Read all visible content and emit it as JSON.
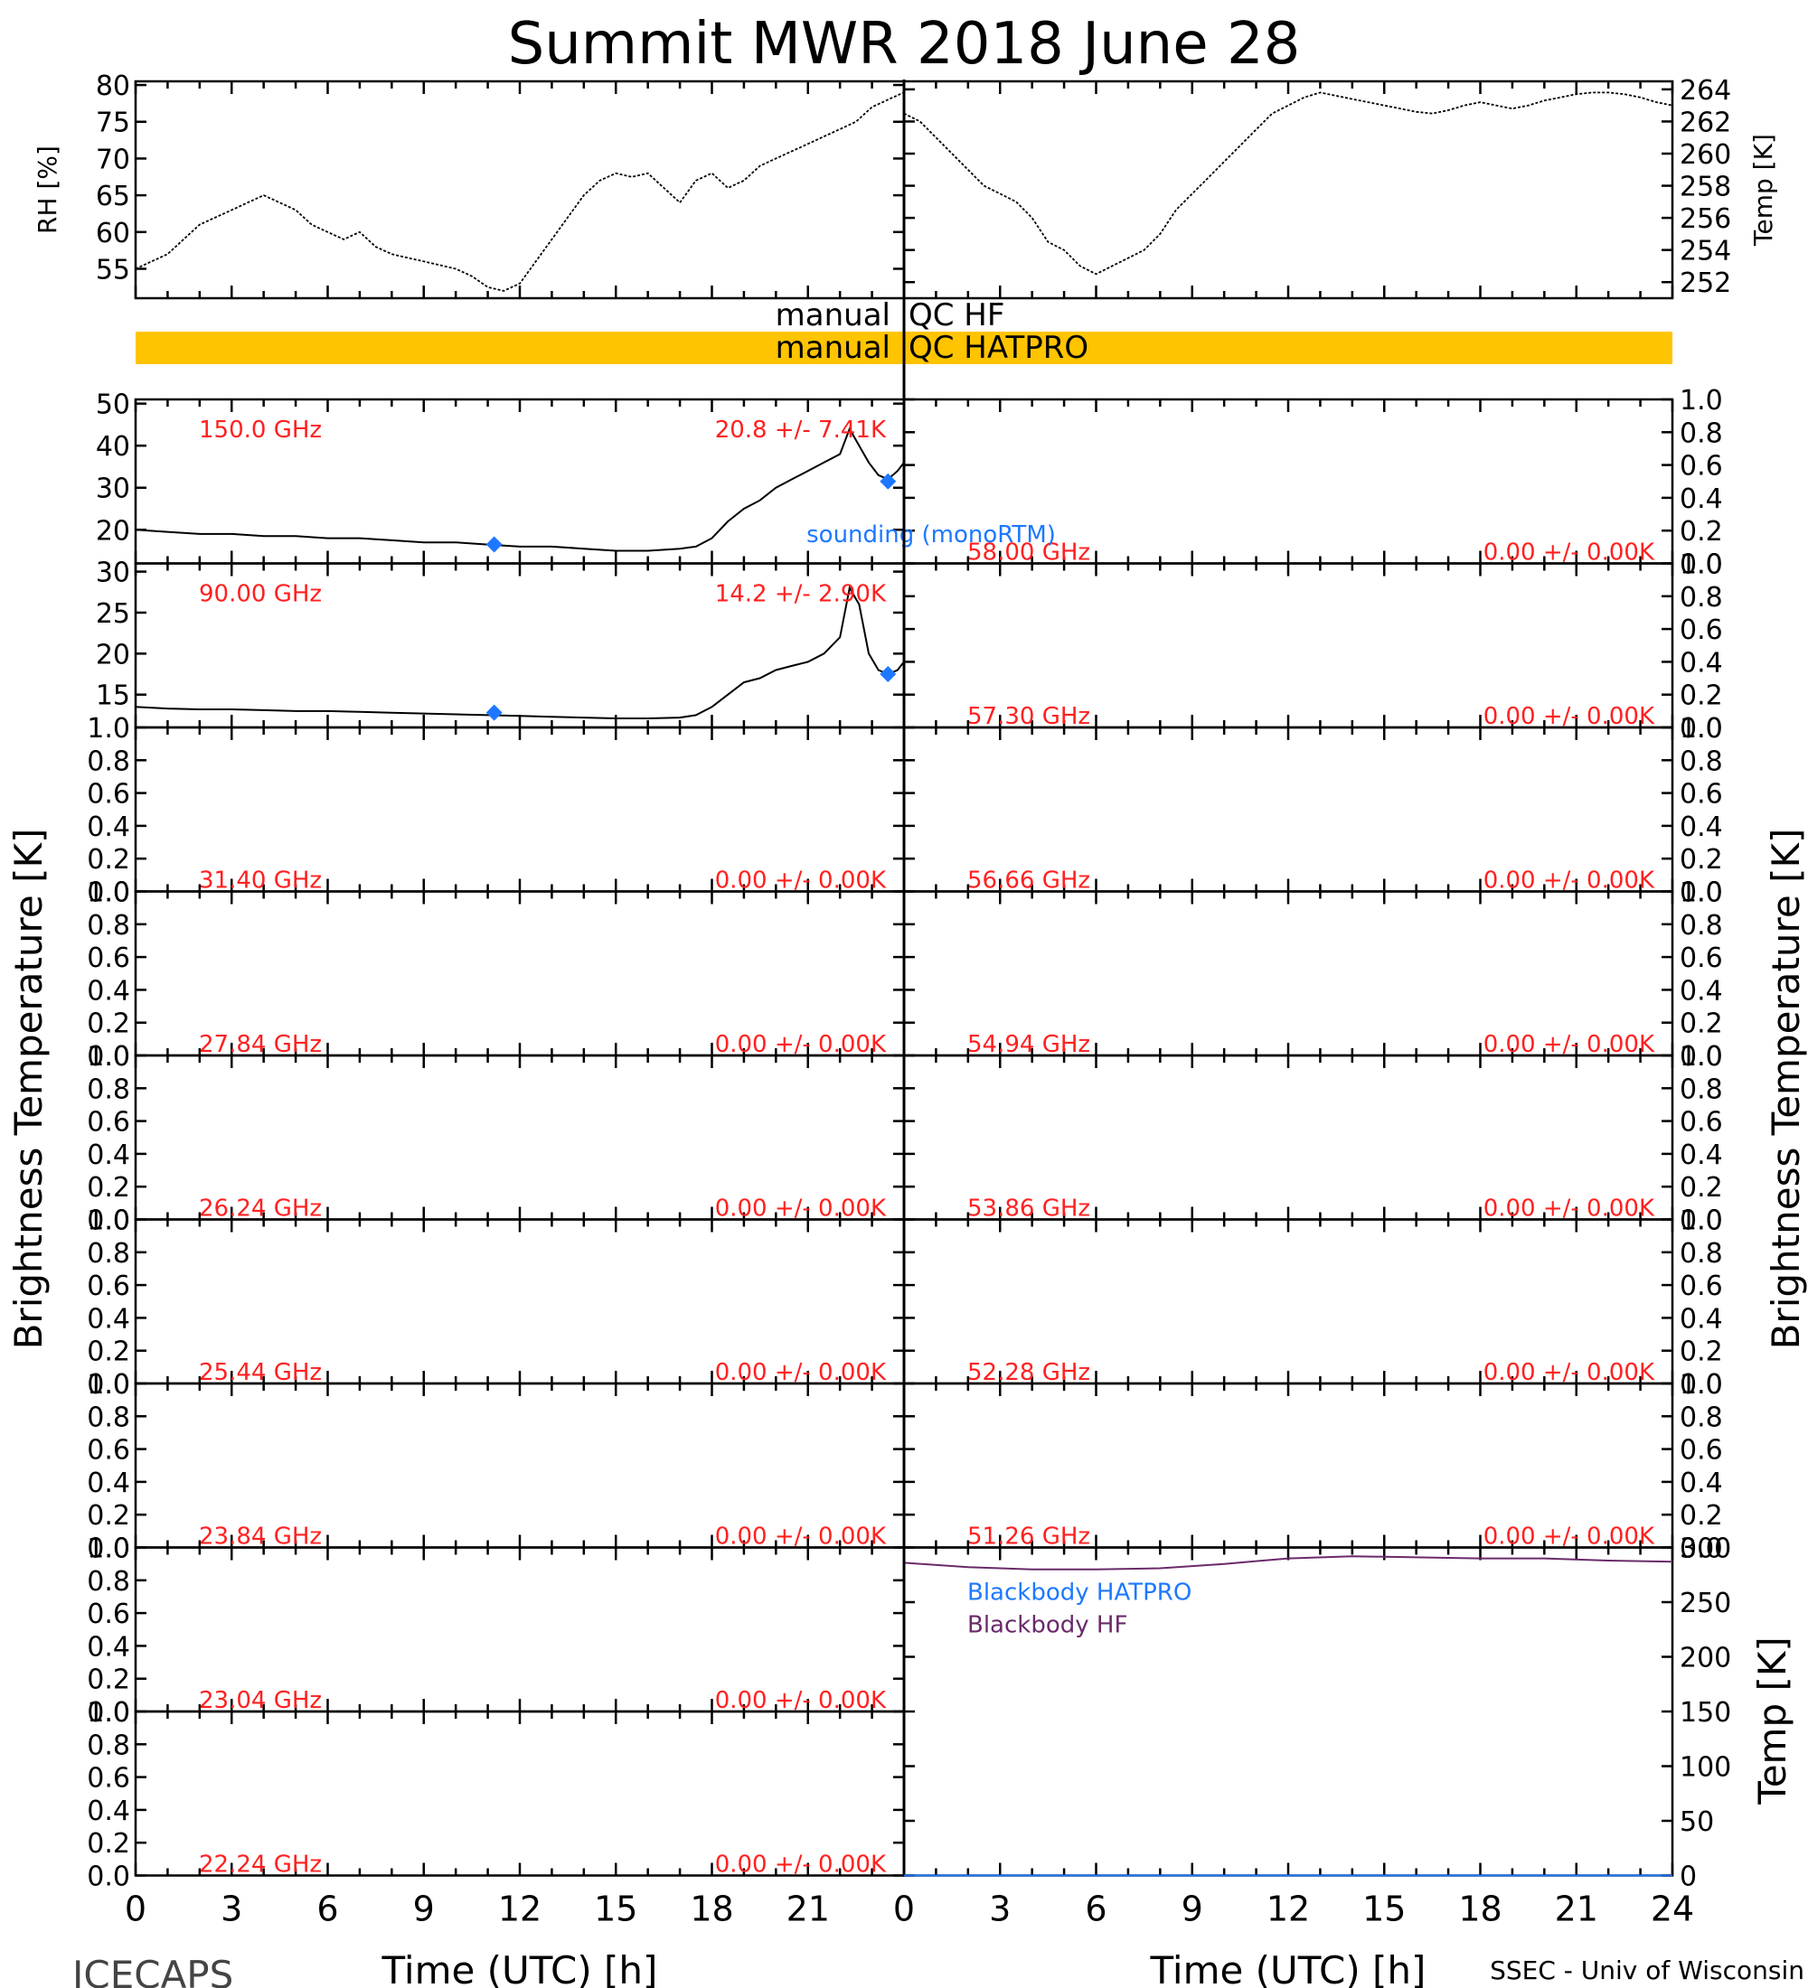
{
  "title": "Summit MWR 2018 June 28",
  "footer": {
    "left_label": "ICECAPS",
    "right_label": "SSEC - Univ of Wisconsin",
    "xlabel_left": "Time (UTC) [h]",
    "xlabel_right": "Time (UTC) [h]"
  },
  "ylabel_left": "Brightness Temperature [K]",
  "ylabel_right": "Brightness Temperature [K]",
  "colors": {
    "freq_label": "#ff2020",
    "sounding": "#1e78ff",
    "qc_bar": "#ffc400",
    "blackbody_hf": "#6a2a6a",
    "blackbody_hatpro": "#1e78ff"
  },
  "qc": {
    "hf_label_left": "manual",
    "hf_label_right": "QC HF",
    "hatpro_label_left": "manual",
    "hatpro_label_right": "QC HATPRO"
  },
  "sounding_label": "sounding (monoRTM)",
  "blackbody_labels": [
    "Blackbody HATPRO",
    "Blackbody HF"
  ],
  "x_ticks": [
    "0",
    "3",
    "6",
    "9",
    "12",
    "15",
    "18",
    "21",
    "24"
  ],
  "chart_data": [
    {
      "id": "rh",
      "type": "line",
      "ylabel": "RH [%]",
      "xlim": [
        0,
        24
      ],
      "ylim": [
        51,
        80.5
      ],
      "yticks": [
        55,
        60,
        65,
        70,
        75,
        80
      ],
      "x": [
        0,
        0.5,
        1,
        1.5,
        2,
        2.5,
        3,
        3.5,
        4,
        4.5,
        5,
        5.5,
        6,
        6.5,
        7,
        7.5,
        8,
        8.5,
        9,
        9.5,
        10,
        10.5,
        11,
        11.5,
        12,
        12.5,
        13,
        13.5,
        14,
        14.5,
        15,
        15.5,
        16,
        16.5,
        17,
        17.5,
        18,
        18.5,
        19,
        19.5,
        20,
        20.5,
        21,
        21.5,
        22,
        22.5,
        23,
        23.5,
        24
      ],
      "values": [
        55,
        56,
        57,
        59,
        61,
        62,
        63,
        64,
        65,
        64,
        63,
        61,
        60,
        59,
        60,
        58,
        57,
        56.5,
        56,
        55.5,
        55,
        54,
        52.5,
        52,
        53,
        56,
        59,
        62,
        65,
        67,
        68,
        67.5,
        68,
        66,
        64,
        67,
        68,
        66,
        67,
        69,
        70,
        71,
        72,
        73,
        74,
        75,
        77,
        78,
        79
      ]
    },
    {
      "id": "temp",
      "type": "line",
      "ylabel": "Temp [K]",
      "xlim": [
        0,
        24
      ],
      "ylim": [
        251,
        264.5
      ],
      "yticks": [
        252,
        254,
        256,
        258,
        260,
        262,
        264
      ],
      "x": [
        0,
        0.5,
        1,
        1.5,
        2,
        2.5,
        3,
        3.5,
        4,
        4.5,
        5,
        5.5,
        6,
        6.5,
        7,
        7.5,
        8,
        8.5,
        9,
        9.5,
        10,
        10.5,
        11,
        11.5,
        12,
        12.5,
        13,
        13.5,
        14,
        14.5,
        15,
        15.5,
        16,
        16.5,
        17,
        17.5,
        18,
        18.5,
        19,
        19.5,
        20,
        20.5,
        21,
        21.5,
        22,
        22.5,
        23,
        23.5,
        24
      ],
      "values": [
        262.5,
        262,
        261,
        260,
        259,
        258,
        257.5,
        257,
        256,
        254.5,
        254,
        253,
        252.5,
        253,
        253.5,
        254,
        255,
        256.5,
        257.5,
        258.5,
        259.5,
        260.5,
        261.5,
        262.5,
        263,
        263.5,
        263.8,
        263.6,
        263.4,
        263.2,
        263,
        262.8,
        262.6,
        262.5,
        262.7,
        263,
        263.2,
        263,
        262.8,
        263,
        263.3,
        263.5,
        263.7,
        263.8,
        263.8,
        263.7,
        263.5,
        263.2,
        263
      ]
    },
    {
      "id": "ch-150",
      "type": "line",
      "freq_label": "150.0 GHz",
      "stats_label": "20.8 +/- 7.41K",
      "xlim": [
        0,
        24
      ],
      "ylim": [
        12,
        51
      ],
      "yticks": [
        20,
        30,
        40,
        50
      ],
      "x": [
        0,
        1,
        2,
        3,
        4,
        5,
        6,
        7,
        8,
        9,
        10,
        11,
        12,
        13,
        14,
        15,
        16,
        17,
        17.5,
        18,
        18.5,
        19,
        19.5,
        20,
        20.5,
        21,
        21.5,
        22,
        22.3,
        22.6,
        22.9,
        23.2,
        23.5,
        23.8,
        24
      ],
      "values": [
        20,
        19.5,
        19,
        19,
        18.5,
        18.5,
        18,
        18,
        17.5,
        17,
        17,
        16.5,
        16,
        16,
        15.5,
        15,
        15,
        15.5,
        16,
        18,
        22,
        25,
        27,
        30,
        32,
        34,
        36,
        38,
        44,
        40,
        36,
        33,
        32,
        34,
        36
      ],
      "sounding_x": [
        11.2,
        23.5
      ],
      "sounding_values": [
        16.5,
        31.5
      ]
    },
    {
      "id": "ch-9000",
      "type": "line",
      "freq_label": "90.00 GHz",
      "stats_label": "14.2 +/- 2.90K",
      "xlim": [
        0,
        24
      ],
      "ylim": [
        11,
        31
      ],
      "yticks": [
        15,
        20,
        25,
        30
      ],
      "x": [
        0,
        1,
        2,
        3,
        4,
        5,
        6,
        7,
        8,
        9,
        10,
        11,
        12,
        13,
        14,
        15,
        16,
        17,
        17.5,
        18,
        18.5,
        19,
        19.5,
        20,
        20.5,
        21,
        21.5,
        22,
        22.3,
        22.6,
        22.9,
        23.2,
        23.5,
        23.8,
        24
      ],
      "values": [
        13.5,
        13.3,
        13.2,
        13.2,
        13.1,
        13,
        13,
        12.9,
        12.8,
        12.7,
        12.6,
        12.5,
        12.4,
        12.3,
        12.2,
        12.1,
        12.1,
        12.2,
        12.5,
        13.5,
        15,
        16.5,
        17,
        18,
        18.5,
        19,
        20,
        22,
        28,
        26,
        20,
        18,
        17.5,
        18,
        19
      ],
      "sounding_x": [
        11.2,
        23.5
      ],
      "sounding_values": [
        12.8,
        17.5
      ]
    },
    {
      "id": "ch-5800",
      "type": "line",
      "freq_label": "58.00 GHz",
      "stats_label": "0.00 +/- 0.00K",
      "ylim": [
        0,
        1
      ],
      "yticks": [
        0.0,
        0.2,
        0.4,
        0.6,
        0.8,
        1.0
      ],
      "values": []
    },
    {
      "id": "ch-5730",
      "type": "line",
      "freq_label": "57.30 GHz",
      "stats_label": "0.00 +/- 0.00K",
      "ylim": [
        0,
        1
      ],
      "yticks": [
        0.0,
        0.2,
        0.4,
        0.6,
        0.8,
        1.0
      ],
      "values": []
    },
    {
      "id": "ch-3140",
      "type": "line",
      "freq_label": "31.40 GHz",
      "stats_label": "0.00 +/- 0.00K",
      "ylim": [
        0,
        1
      ],
      "yticks": [
        0.0,
        0.2,
        0.4,
        0.6,
        0.8,
        1.0
      ],
      "values": []
    },
    {
      "id": "ch-5666",
      "type": "line",
      "freq_label": "56.66 GHz",
      "stats_label": "0.00 +/- 0.00K",
      "ylim": [
        0,
        1
      ],
      "yticks": [
        0.0,
        0.2,
        0.4,
        0.6,
        0.8,
        1.0
      ],
      "values": []
    },
    {
      "id": "ch-2784",
      "type": "line",
      "freq_label": "27.84 GHz",
      "stats_label": "0.00 +/- 0.00K",
      "ylim": [
        0,
        1
      ],
      "yticks": [
        0.0,
        0.2,
        0.4,
        0.6,
        0.8,
        1.0
      ],
      "values": []
    },
    {
      "id": "ch-5494",
      "type": "line",
      "freq_label": "54.94 GHz",
      "stats_label": "0.00 +/- 0.00K",
      "ylim": [
        0,
        1
      ],
      "yticks": [
        0.0,
        0.2,
        0.4,
        0.6,
        0.8,
        1.0
      ],
      "values": []
    },
    {
      "id": "ch-2624",
      "type": "line",
      "freq_label": "26.24 GHz",
      "stats_label": "0.00 +/- 0.00K",
      "ylim": [
        0,
        1
      ],
      "yticks": [
        0.0,
        0.2,
        0.4,
        0.6,
        0.8,
        1.0
      ],
      "values": []
    },
    {
      "id": "ch-5386",
      "type": "line",
      "freq_label": "53.86 GHz",
      "stats_label": "0.00 +/- 0.00K",
      "ylim": [
        0,
        1
      ],
      "yticks": [
        0.0,
        0.2,
        0.4,
        0.6,
        0.8,
        1.0
      ],
      "values": []
    },
    {
      "id": "ch-2544",
      "type": "line",
      "freq_label": "25.44 GHz",
      "stats_label": "0.00 +/- 0.00K",
      "ylim": [
        0,
        1
      ],
      "yticks": [
        0.0,
        0.2,
        0.4,
        0.6,
        0.8,
        1.0
      ],
      "values": []
    },
    {
      "id": "ch-5228",
      "type": "line",
      "freq_label": "52.28 GHz",
      "stats_label": "0.00 +/- 0.00K",
      "ylim": [
        0,
        1
      ],
      "yticks": [
        0.0,
        0.2,
        0.4,
        0.6,
        0.8,
        1.0
      ],
      "values": []
    },
    {
      "id": "ch-2384",
      "type": "line",
      "freq_label": "23.84 GHz",
      "stats_label": "0.00 +/- 0.00K",
      "ylim": [
        0,
        1
      ],
      "yticks": [
        0.0,
        0.2,
        0.4,
        0.6,
        0.8,
        1.0
      ],
      "values": []
    },
    {
      "id": "ch-5126",
      "type": "line",
      "freq_label": "51.26 GHz",
      "stats_label": "0.00 +/- 0.00K",
      "ylim": [
        0,
        1
      ],
      "yticks": [
        0.0,
        0.2,
        0.4,
        0.6,
        0.8,
        1.0
      ],
      "values": []
    },
    {
      "id": "ch-2304",
      "type": "line",
      "freq_label": "23.04 GHz",
      "stats_label": "0.00 +/- 0.00K",
      "ylim": [
        0,
        1
      ],
      "yticks": [
        0.0,
        0.2,
        0.4,
        0.6,
        0.8,
        1.0
      ],
      "values": []
    },
    {
      "id": "ch-2224",
      "type": "line",
      "freq_label": "22.24 GHz",
      "stats_label": "0.00 +/- 0.00K",
      "ylim": [
        0,
        1
      ],
      "yticks": [
        0.0,
        0.2,
        0.4,
        0.6,
        0.8,
        1.0
      ],
      "values": []
    },
    {
      "id": "blackbody",
      "type": "line",
      "ylabel": "Temp [K]",
      "xlim": [
        0,
        24
      ],
      "ylim": [
        0,
        300
      ],
      "yticks": [
        0,
        50,
        100,
        150,
        200,
        250,
        300
      ],
      "series": [
        {
          "name": "Blackbody HF",
          "x": [
            0,
            2,
            4,
            6,
            8,
            10,
            12,
            14,
            16,
            18,
            20,
            22,
            24
          ],
          "values": [
            286,
            282,
            280,
            280,
            281,
            285,
            290,
            292,
            291,
            290,
            290,
            288,
            287
          ]
        },
        {
          "name": "Blackbody HATPRO",
          "x": [
            0,
            24
          ],
          "values": [
            0,
            0
          ]
        }
      ]
    }
  ]
}
